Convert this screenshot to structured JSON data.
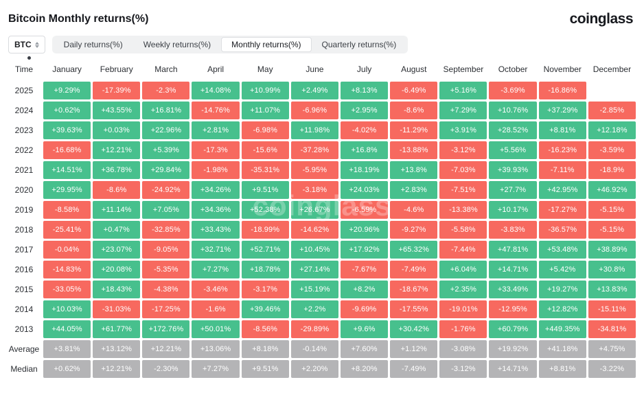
{
  "page": {
    "title": "Bitcoin Monthly returns(%)",
    "logo": "coinglass",
    "watermark": "coinglass"
  },
  "controls": {
    "coin_label": "BTC",
    "tabs": [
      {
        "label": "Daily returns(%)",
        "active": false
      },
      {
        "label": "Weekly returns(%)",
        "active": false
      },
      {
        "label": "Monthly returns(%)",
        "active": true
      },
      {
        "label": "Quarterly returns(%)",
        "active": false
      }
    ]
  },
  "colors": {
    "positive": "#47c08d",
    "negative": "#f7695f",
    "neutral": "#b4b4b6"
  },
  "chart_data": {
    "type": "heatmap",
    "title": "Bitcoin Monthly returns(%)",
    "columns": [
      "Time",
      "January",
      "February",
      "March",
      "April",
      "May",
      "June",
      "July",
      "August",
      "September",
      "October",
      "November",
      "December"
    ],
    "rows": [
      {
        "label": "2025",
        "neutral": false,
        "values": [
          "+9.29%",
          "-17.39%",
          "-2.3%",
          "+14.08%",
          "+10.99%",
          "+2.49%",
          "+8.13%",
          "-6.49%",
          "+5.16%",
          "-3.69%",
          "-16.86%",
          ""
        ]
      },
      {
        "label": "2024",
        "neutral": false,
        "values": [
          "+0.62%",
          "+43.55%",
          "+16.81%",
          "-14.76%",
          "+11.07%",
          "-6.96%",
          "+2.95%",
          "-8.6%",
          "+7.29%",
          "+10.76%",
          "+37.29%",
          "-2.85%"
        ]
      },
      {
        "label": "2023",
        "neutral": false,
        "values": [
          "+39.63%",
          "+0.03%",
          "+22.96%",
          "+2.81%",
          "-6.98%",
          "+11.98%",
          "-4.02%",
          "-11.29%",
          "+3.91%",
          "+28.52%",
          "+8.81%",
          "+12.18%"
        ]
      },
      {
        "label": "2022",
        "neutral": false,
        "values": [
          "-16.68%",
          "+12.21%",
          "+5.39%",
          "-17.3%",
          "-15.6%",
          "-37.28%",
          "+16.8%",
          "-13.88%",
          "-3.12%",
          "+5.56%",
          "-16.23%",
          "-3.59%"
        ]
      },
      {
        "label": "2021",
        "neutral": false,
        "values": [
          "+14.51%",
          "+36.78%",
          "+29.84%",
          "-1.98%",
          "-35.31%",
          "-5.95%",
          "+18.19%",
          "+13.8%",
          "-7.03%",
          "+39.93%",
          "-7.11%",
          "-18.9%"
        ]
      },
      {
        "label": "2020",
        "neutral": false,
        "values": [
          "+29.95%",
          "-8.6%",
          "-24.92%",
          "+34.26%",
          "+9.51%",
          "-3.18%",
          "+24.03%",
          "+2.83%",
          "-7.51%",
          "+27.7%",
          "+42.95%",
          "+46.92%"
        ]
      },
      {
        "label": "2019",
        "neutral": false,
        "values": [
          "-8.58%",
          "+11.14%",
          "+7.05%",
          "+34.36%",
          "+52.38%",
          "+26.67%",
          "-6.59%",
          "-4.6%",
          "-13.38%",
          "+10.17%",
          "-17.27%",
          "-5.15%"
        ]
      },
      {
        "label": "2018",
        "neutral": false,
        "values": [
          "-25.41%",
          "+0.47%",
          "-32.85%",
          "+33.43%",
          "-18.99%",
          "-14.62%",
          "+20.96%",
          "-9.27%",
          "-5.58%",
          "-3.83%",
          "-36.57%",
          "-5.15%"
        ]
      },
      {
        "label": "2017",
        "neutral": false,
        "values": [
          "-0.04%",
          "+23.07%",
          "-9.05%",
          "+32.71%",
          "+52.71%",
          "+10.45%",
          "+17.92%",
          "+65.32%",
          "-7.44%",
          "+47.81%",
          "+53.48%",
          "+38.89%"
        ]
      },
      {
        "label": "2016",
        "neutral": false,
        "values": [
          "-14.83%",
          "+20.08%",
          "-5.35%",
          "+7.27%",
          "+18.78%",
          "+27.14%",
          "-7.67%",
          "-7.49%",
          "+6.04%",
          "+14.71%",
          "+5.42%",
          "+30.8%"
        ]
      },
      {
        "label": "2015",
        "neutral": false,
        "values": [
          "-33.05%",
          "+18.43%",
          "-4.38%",
          "-3.46%",
          "-3.17%",
          "+15.19%",
          "+8.2%",
          "-18.67%",
          "+2.35%",
          "+33.49%",
          "+19.27%",
          "+13.83%"
        ]
      },
      {
        "label": "2014",
        "neutral": false,
        "values": [
          "+10.03%",
          "-31.03%",
          "-17.25%",
          "-1.6%",
          "+39.46%",
          "+2.2%",
          "-9.69%",
          "-17.55%",
          "-19.01%",
          "-12.95%",
          "+12.82%",
          "-15.11%"
        ]
      },
      {
        "label": "2013",
        "neutral": false,
        "values": [
          "+44.05%",
          "+61.77%",
          "+172.76%",
          "+50.01%",
          "-8.56%",
          "-29.89%",
          "+9.6%",
          "+30.42%",
          "-1.76%",
          "+60.79%",
          "+449.35%",
          "-34.81%"
        ]
      },
      {
        "label": "Average",
        "neutral": true,
        "values": [
          "+3.81%",
          "+13.12%",
          "+12.21%",
          "+13.06%",
          "+8.18%",
          "-0.14%",
          "+7.60%",
          "+1.12%",
          "-3.08%",
          "+19.92%",
          "+41.18%",
          "+4.75%"
        ]
      },
      {
        "label": "Median",
        "neutral": true,
        "values": [
          "+0.62%",
          "+12.21%",
          "-2.30%",
          "+7.27%",
          "+9.51%",
          "+2.20%",
          "+8.20%",
          "-7.49%",
          "-3.12%",
          "+14.71%",
          "+8.81%",
          "-3.22%"
        ]
      }
    ]
  }
}
